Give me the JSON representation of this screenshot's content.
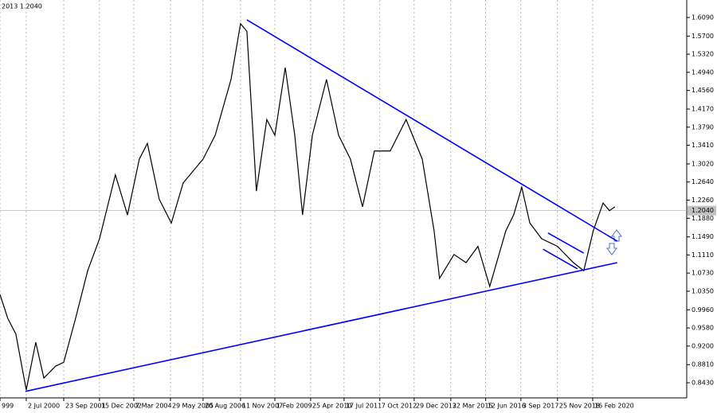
{
  "chart_data": {
    "type": "line",
    "header": "2013 1.2040",
    "series": [
      {
        "color": "#000000",
        "x": [
          1999.59,
          1999.86,
          2000.14,
          2000.5,
          2000.83,
          2001.11,
          2001.52,
          2001.8,
          2002.21,
          2002.63,
          2003.04,
          2003.59,
          2004.01,
          2004.42,
          2004.7,
          2005.11,
          2005.53,
          2005.94,
          2006.63,
          2007.05,
          2007.6,
          2007.93,
          2008.15,
          2008.48,
          2008.84,
          2009.12,
          2009.48,
          2009.81,
          2010.08,
          2010.42,
          2010.91,
          2011.33,
          2011.74,
          2012.16,
          2012.57,
          2013.12,
          2013.67,
          2014.23,
          2014.64,
          2014.83,
          2015.33,
          2015.75,
          2016.16,
          2016.57,
          2017.13,
          2017.4,
          2017.68,
          2017.96,
          2018.37,
          2018.92,
          2019.47,
          2019.83,
          2020.16,
          2020.5,
          2020.72,
          2020.91
        ],
        "values": [
          1.028,
          0.978,
          0.945,
          0.828,
          0.928,
          0.853,
          0.878,
          0.886,
          0.978,
          1.078,
          1.145,
          1.279,
          1.195,
          1.312,
          1.345,
          1.228,
          1.178,
          1.262,
          1.312,
          1.362,
          1.479,
          1.596,
          1.58,
          1.245,
          1.395,
          1.362,
          1.504,
          1.362,
          1.195,
          1.362,
          1.479,
          1.362,
          1.312,
          1.212,
          1.329,
          1.329,
          1.395,
          1.312,
          1.162,
          1.062,
          1.112,
          1.095,
          1.129,
          1.045,
          1.162,
          1.195,
          1.253,
          1.178,
          1.145,
          1.129,
          1.095,
          1.078,
          1.162,
          1.22,
          1.204,
          1.212
        ]
      }
    ],
    "trendlines": [
      {
        "color": "#0000ff",
        "x": [
          2008.15,
          2020.99
        ],
        "y": [
          1.604,
          1.14
        ]
      },
      {
        "color": "#0000ff",
        "x": [
          2000.47,
          2020.99
        ],
        "y": [
          0.825,
          1.095
        ]
      },
      {
        "color": "#0000ff",
        "x": [
          2018.59,
          2019.83
        ],
        "y": [
          1.157,
          1.115
        ]
      },
      {
        "color": "#0000ff",
        "x": [
          2018.42,
          2019.61
        ],
        "y": [
          1.123,
          1.082
        ]
      }
    ],
    "last_price": {
      "value": 1.204,
      "label": "1.2040"
    },
    "xlim": [
      1999.59,
      2023.4
    ],
    "ylim": [
      0.8113,
      1.6457
    ],
    "xticks": [
      {
        "value": 1999.59,
        "label": "999"
      },
      {
        "value": 2000.5,
        "label": "2 Jul 2000"
      },
      {
        "value": 2001.8,
        "label": "23 Sep 2001"
      },
      {
        "value": 2003.04,
        "label": "15 Dec 2002"
      },
      {
        "value": 2004.23,
        "label": "7 Mar 2004"
      },
      {
        "value": 2005.5,
        "label": "29 May 2005"
      },
      {
        "value": 2006.63,
        "label": "20 Aug 2006"
      },
      {
        "value": 2007.93,
        "label": "11 Nov 2007"
      },
      {
        "value": 2009.12,
        "label": "1 Feb 2009"
      },
      {
        "value": 2010.36,
        "label": "25 Apr 2010"
      },
      {
        "value": 2011.52,
        "label": "17 Jul 2011"
      },
      {
        "value": 2012.76,
        "label": "7 Oct 2012"
      },
      {
        "value": 2013.95,
        "label": "29 Dec 2013"
      },
      {
        "value": 2015.22,
        "label": "22 Mar 2015"
      },
      {
        "value": 2016.43,
        "label": "12 Jun 2016"
      },
      {
        "value": 2017.65,
        "label": "3 Sep 2017"
      },
      {
        "value": 2018.92,
        "label": "25 Nov 2018"
      },
      {
        "value": 2020.14,
        "label": "16 Feb 2020"
      }
    ],
    "yticks": [
      {
        "value": 1.609,
        "label": "1.6090"
      },
      {
        "value": 1.57,
        "label": "1.5700"
      },
      {
        "value": 1.532,
        "label": "1.5320"
      },
      {
        "value": 1.494,
        "label": "1.4940"
      },
      {
        "value": 1.456,
        "label": "1.4560"
      },
      {
        "value": 1.417,
        "label": "1.4170"
      },
      {
        "value": 1.379,
        "label": "1.3790"
      },
      {
        "value": 1.341,
        "label": "1.3410"
      },
      {
        "value": 1.302,
        "label": "1.3020"
      },
      {
        "value": 1.264,
        "label": "1.2640"
      },
      {
        "value": 1.226,
        "label": "1.2260"
      },
      {
        "value": 1.188,
        "label": "1.1880"
      },
      {
        "value": 1.149,
        "label": "1.1490"
      },
      {
        "value": 1.111,
        "label": "1.1110"
      },
      {
        "value": 1.073,
        "label": "1.0730"
      },
      {
        "value": 1.035,
        "label": "1.0350"
      },
      {
        "value": 0.996,
        "label": "0.9960"
      },
      {
        "value": 0.958,
        "label": "0.9580"
      },
      {
        "value": 0.92,
        "label": "0.9200"
      },
      {
        "value": 0.881,
        "label": "0.8810"
      },
      {
        "value": 0.843,
        "label": "0.8430"
      }
    ],
    "grid": true
  }
}
